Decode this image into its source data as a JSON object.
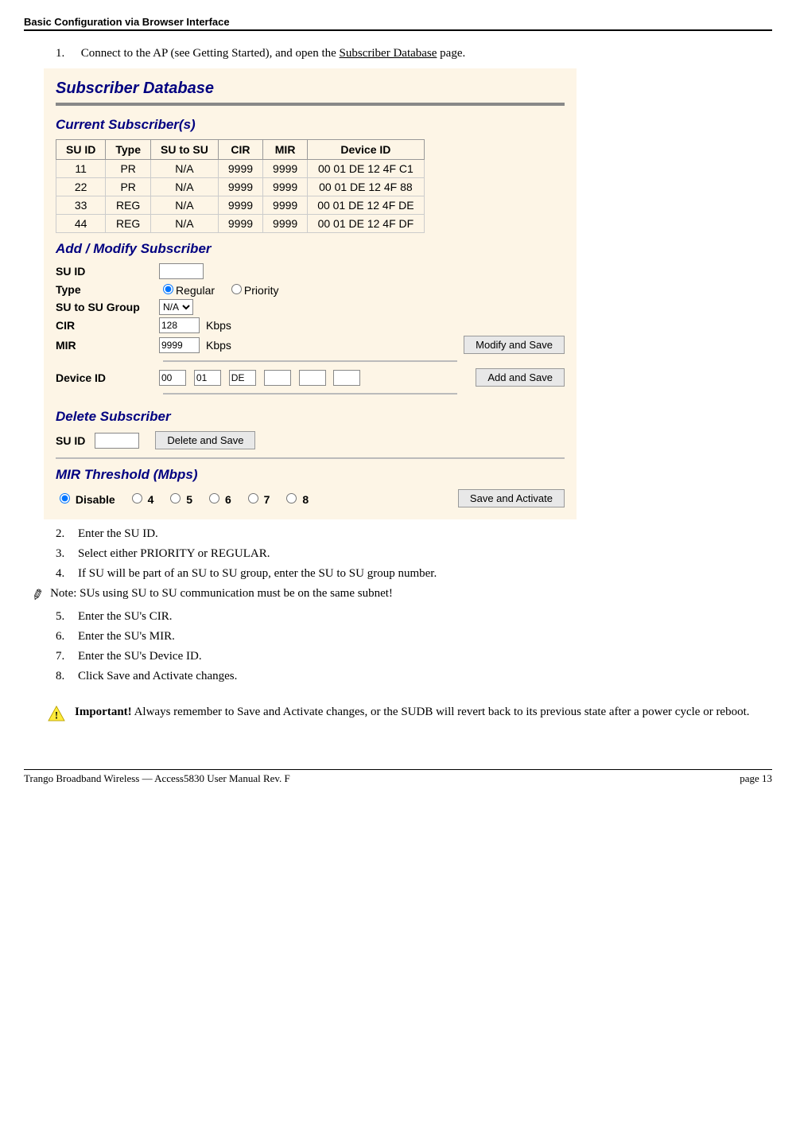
{
  "header": {
    "section_title": "Basic Configuration via Browser Interface"
  },
  "steps": {
    "s1_num": "1.",
    "s1_text_a": "Connect to the AP (see Getting Started), and open the ",
    "s1_link": "Subscriber Database",
    "s1_text_b": " page.",
    "s2_num": "2.",
    "s2_text": "Enter the SU ID.",
    "s3_num": "3.",
    "s3_text": "Select either PRIORITY or REGULAR.",
    "s4_num": "4.",
    "s4_text": "If SU will be part of an SU to SU group, enter the SU to SU group number.",
    "note_label": "Note:",
    "note_text": "SUs using SU to SU communication must be on the same subnet!",
    "s5_num": "5.",
    "s5_text": "Enter the SU's CIR.",
    "s6_num": "6.",
    "s6_text": "Enter the SU's MIR.",
    "s7_num": "7.",
    "s7_text": "Enter the SU's Device ID.",
    "s8_num": "8.",
    "s8_text": "Click Save and Activate changes."
  },
  "important": {
    "label": "Important!",
    "text": "  Always remember to Save and Activate changes, or the SUDB will revert back to its previous state after a power cycle or reboot."
  },
  "screenshot": {
    "title": "Subscriber Database",
    "current_section": "Current Subscriber(s)",
    "table": {
      "columns": [
        "SU ID",
        "Type",
        "SU to SU",
        "CIR",
        "MIR",
        "Device ID"
      ],
      "rows": [
        [
          "11",
          "PR",
          "N/A",
          "9999",
          "9999",
          "00 01 DE 12 4F C1"
        ],
        [
          "22",
          "PR",
          "N/A",
          "9999",
          "9999",
          "00 01 DE 12 4F 88"
        ],
        [
          "33",
          "REG",
          "N/A",
          "9999",
          "9999",
          "00 01 DE 12 4F DE"
        ],
        [
          "44",
          "REG",
          "N/A",
          "9999",
          "9999",
          "00 01 DE 12 4F DF"
        ]
      ]
    },
    "add_section": "Add / Modify Subscriber",
    "form": {
      "suid_label": "SU ID",
      "type_label": "Type",
      "type_regular": "Regular",
      "type_priority": "Priority",
      "group_label": "SU to SU Group",
      "group_value": "N/A",
      "cir_label": "CIR",
      "cir_value": "128",
      "cir_unit": "Kbps",
      "mir_label": "MIR",
      "mir_value": "9999",
      "mir_unit": "Kbps",
      "modify_btn": "Modify and Save",
      "device_label": "Device ID",
      "mac": [
        "00",
        "01",
        "DE",
        "",
        "",
        ""
      ],
      "add_btn": "Add and Save"
    },
    "delete_section": "Delete Subscriber",
    "delete": {
      "suid_label": "SU ID",
      "btn": "Delete and Save"
    },
    "mir_section": "MIR Threshold (Mbps)",
    "mir_opts": {
      "disable": "Disable",
      "o4": "4",
      "o5": "5",
      "o6": "6",
      "o7": "7",
      "o8": "8",
      "btn": "Save and Activate"
    }
  },
  "footer": {
    "left": "Trango Broadband Wireless — Access5830 User Manual  Rev. F",
    "right": "page 13"
  },
  "colors": {
    "screenshot_bg": "#fdf5e6",
    "heading_navy": "#000080"
  }
}
